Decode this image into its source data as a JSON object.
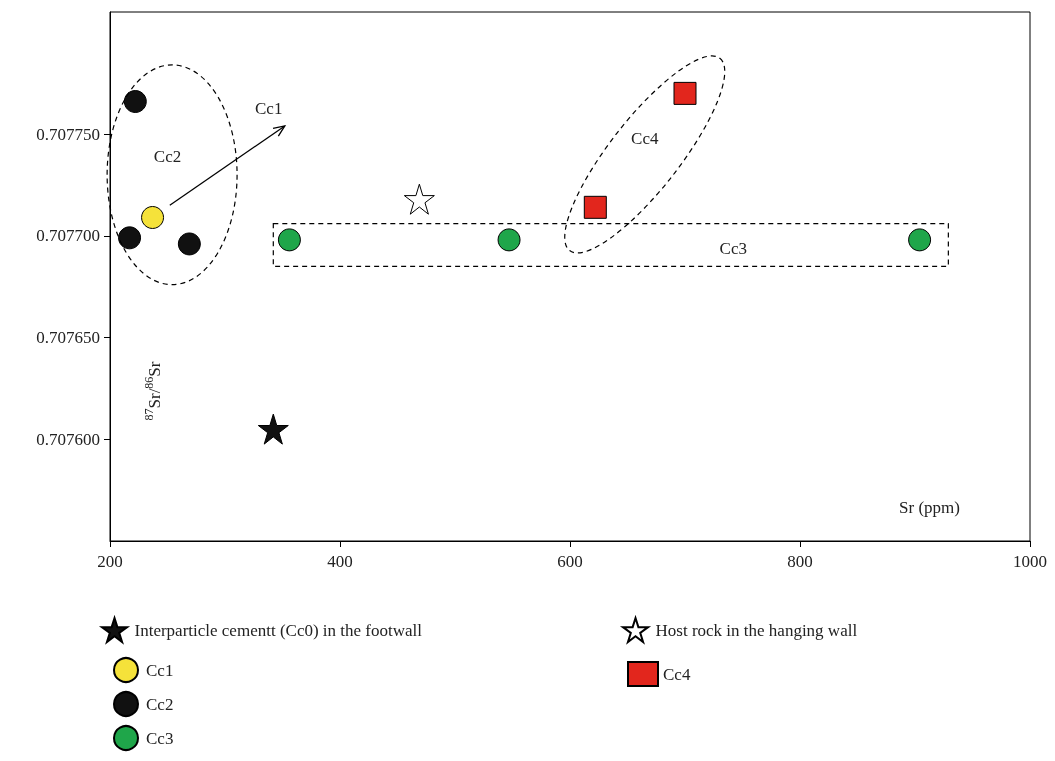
{
  "chart_data": {
    "type": "scatter",
    "xlabel": "Sr (ppm)",
    "ylabel": "$^{87}$Sr/$^{86}$Sr",
    "xlim": [
      200,
      1000
    ],
    "xticks": [
      200,
      400,
      600,
      800,
      1000
    ],
    "ylim": [
      0.70755,
      0.70781
    ],
    "yticks": [
      {
        "value": 0.7076,
        "label": "0.707600"
      },
      {
        "value": 0.70765,
        "label": "0.707650"
      },
      {
        "value": 0.7077,
        "label": "0.707700"
      },
      {
        "value": 0.70775,
        "label": "0.707750"
      }
    ],
    "grid": false,
    "legend": "bottom",
    "series": [
      {
        "name": "Interparticle cementt (Cc0) in the footwall",
        "color": "#111111",
        "marker": "star",
        "x": [
          342
        ],
        "values": [
          0.707605
        ]
      },
      {
        "name": "Cc1",
        "color": "#f5e23a",
        "marker": "circle",
        "x": [
          237
        ],
        "values": [
          0.707709
        ]
      },
      {
        "name": "Cc2",
        "color": "#111111",
        "marker": "circle",
        "x": [
          222,
          217,
          269
        ],
        "values": [
          0.707766,
          0.707699,
          0.707696
        ]
      },
      {
        "name": "Cc3",
        "color": "#1fa64a",
        "marker": "circle",
        "x": [
          356,
          547,
          904
        ],
        "values": [
          0.707698,
          0.707698,
          0.707698
        ]
      },
      {
        "name": "Host rock in the hanging wall",
        "color": "#ffffff",
        "marker": "star",
        "x": [
          469
        ],
        "values": [
          0.707718
        ]
      },
      {
        "name": "Cc4",
        "color": "#e2261d",
        "marker": "square",
        "x": [
          700,
          622
        ],
        "values": [
          0.70777,
          0.707714
        ]
      }
    ],
    "annotations": [
      "Cc1",
      "Cc2",
      "Cc4",
      "Cc3"
    ]
  }
}
